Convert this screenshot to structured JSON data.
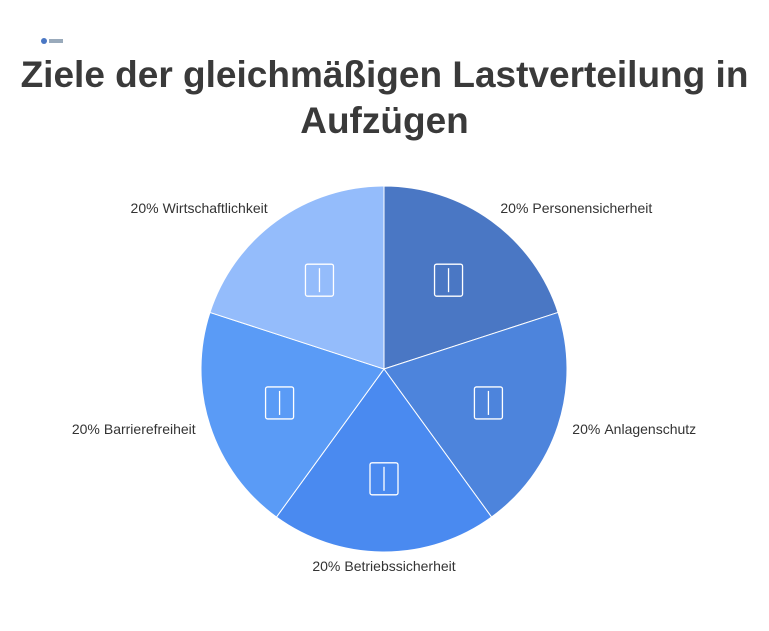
{
  "chart_data": {
    "type": "pie",
    "title": "Ziele der gleichmäßigen Lastverteilung in Aufzügen",
    "categories": [
      "Personensicherheit",
      "Anlagenschutz",
      "Betriebssicherheit",
      "Barrierefreiheit",
      "Wirtschaftlichkeit"
    ],
    "values": [
      20,
      20,
      20,
      20,
      20
    ],
    "value_labels": [
      "20%",
      "20%",
      "20%",
      "20%",
      "20%"
    ],
    "colors": [
      "#4a77c4",
      "#4d84dc",
      "#4a8af0",
      "#5a9bf6",
      "#94bcfb"
    ]
  }
}
